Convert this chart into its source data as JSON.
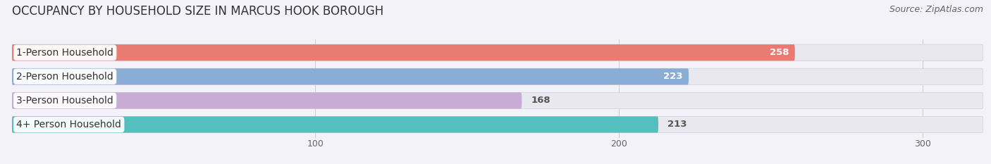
{
  "title": "OCCUPANCY BY HOUSEHOLD SIZE IN MARCUS HOOK BOROUGH",
  "source": "Source: ZipAtlas.com",
  "categories": [
    "1-Person Household",
    "2-Person Household",
    "3-Person Household",
    "4+ Person Household"
  ],
  "values": [
    258,
    223,
    168,
    213
  ],
  "bar_colors": [
    "#e87b72",
    "#8aadd6",
    "#c8acd6",
    "#55bfc0"
  ],
  "value_text_colors": [
    "white",
    "white",
    "#666666",
    "#666666"
  ],
  "xlim_data": [
    0,
    320
  ],
  "xticks": [
    100,
    200,
    300
  ],
  "bar_height": 0.68,
  "fig_bg_color": "#f2f2f8",
  "bar_bg_color": "#e8e8ee",
  "inter_bar_color": "#f2f2f8",
  "title_fontsize": 12,
  "label_fontsize": 10,
  "value_fontsize": 9.5,
  "tick_fontsize": 9,
  "source_fontsize": 9
}
